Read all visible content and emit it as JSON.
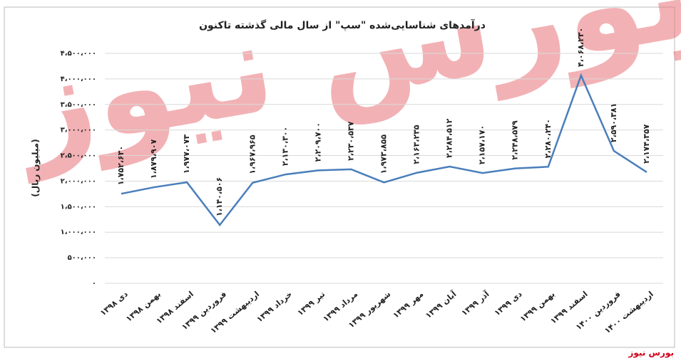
{
  "chart_data": {
    "type": "line",
    "title": "درآمدهای شناسایی‌شده \"سپ\" از سال مالی گذشته تاکنون",
    "y_label": "(میلیون ریال)",
    "watermark": "بورس نیوز",
    "source": "بورس نیوز",
    "categories": [
      "دی ۱۳۹۸",
      "بهمن ۱۳۹۸",
      "اسفند ۱۳۹۸",
      "فروردین ۱۳۹۹",
      "اردیبهشت ۱۳۹۹",
      "خرداد ۱۳۹۹",
      "تیر ۱۳۹۹",
      "مرداد ۱۳۹۹",
      "شهریور ۱۳۹۹",
      "مهر ۱۳۹۹",
      "آبان ۱۳۹۹",
      "آذر ۱۳۹۹",
      "دی ۱۳۹۹",
      "بهمن ۱۳۹۹",
      "اسفند ۱۳۹۹",
      "فروردین ۱۴۰۰",
      "اردیبهشت ۱۴۰۰"
    ],
    "values": [
      1752630,
      1879907,
      1977073,
      1140506,
      1967965,
      2130300,
      2209700,
      2230537,
      1973855,
      2163235,
      2284512,
      2157170,
      2248579,
      2280240,
      4068230,
      2590381,
      2174357
    ],
    "value_labels": [
      "۱،۷۵۲،۶۳۰",
      "۱،۸۷۹،۹۰۷",
      "۱،۹۷۷،۰۷۳",
      "۱،۱۴۰،۵۰۶",
      "۱،۹۶۷،۹۶۵",
      "۲،۱۳۰،۳۰۰",
      "۲،۲۰۹،۷۰۰",
      "۲،۲۳۰،۵۳۷",
      "۱،۹۷۳،۸۵۵",
      "۲،۱۶۳،۲۳۵",
      "۲،۲۸۴،۵۱۲",
      "۲،۱۵۷،۱۷۰",
      "۲،۲۴۸،۵۷۹",
      "۲،۲۸۰،۲۴۰",
      "۴،۰۶۸،۲۳۰",
      "۲،۵۹۰،۳۸۱",
      "۲،۱۷۴،۳۵۷"
    ],
    "color": "#4a7ebb",
    "ylim": [
      0,
      4500000
    ],
    "yticks": [
      {
        "value": 0,
        "label": "۰"
      },
      {
        "value": 500000,
        "label": "۵۰۰،۰۰۰"
      },
      {
        "value": 1000000,
        "label": "۱،۰۰۰،۰۰۰"
      },
      {
        "value": 1500000,
        "label": "۱،۵۰۰،۰۰۰"
      },
      {
        "value": 2000000,
        "label": "۲،۰۰۰،۰۰۰"
      },
      {
        "value": 2500000,
        "label": "۲،۵۰۰،۰۰۰"
      },
      {
        "value": 3000000,
        "label": "۳،۰۰۰،۰۰۰"
      },
      {
        "value": 3500000,
        "label": "۳،۵۰۰،۰۰۰"
      },
      {
        "value": 4000000,
        "label": "۴،۰۰۰،۰۰۰"
      },
      {
        "value": 4500000,
        "label": "۴،۵۰۰،۰۰۰"
      }
    ],
    "grid": true
  }
}
